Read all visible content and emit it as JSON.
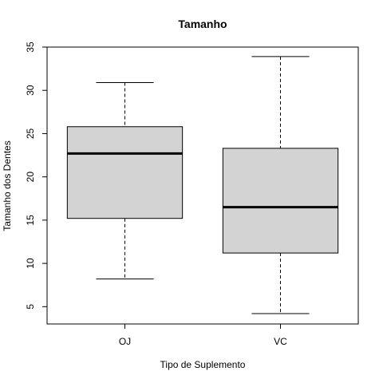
{
  "chart_data": {
    "type": "boxplot",
    "title": "Tamanho",
    "xlabel": "Tipo de Suplemento",
    "ylabel": "Tamanho dos Dentes",
    "categories": [
      "OJ",
      "VC"
    ],
    "ylim": [
      3,
      35
    ],
    "yticks": [
      5,
      10,
      15,
      20,
      25,
      30,
      35
    ],
    "grid": false,
    "box_fill": "#d3d3d3",
    "boxes": [
      {
        "category": "OJ",
        "whisker_low": 8.2,
        "q1": 15.2,
        "median": 22.7,
        "q3": 25.8,
        "whisker_high": 30.9
      },
      {
        "category": "VC",
        "whisker_low": 4.2,
        "q1": 11.2,
        "median": 16.5,
        "q3": 23.3,
        "whisker_high": 33.9
      }
    ]
  }
}
